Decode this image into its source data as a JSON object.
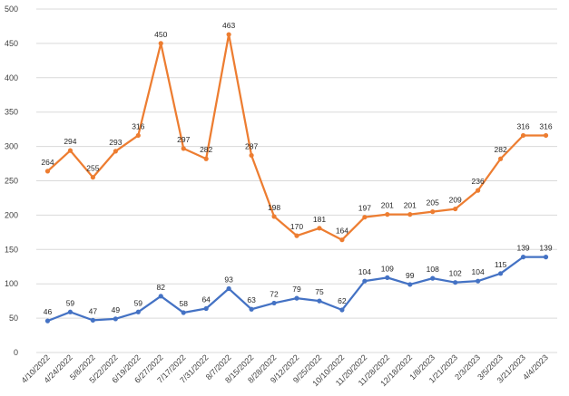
{
  "chart_data": {
    "type": "line",
    "title": "",
    "xlabel": "",
    "ylabel": "",
    "ylim": [
      0,
      500
    ],
    "yticks": [
      0,
      50,
      100,
      150,
      200,
      250,
      300,
      350,
      400,
      450,
      500
    ],
    "grid": true,
    "legend": "none",
    "categories": [
      "4/10/2022",
      "4/24/2022",
      "5/8/2022",
      "5/22/2022",
      "6/19/2022",
      "6/27/2022",
      "7/17/2022",
      "7/31/2022",
      "8/7/2022",
      "8/15/2022",
      "8/28/2022",
      "9/12/2022",
      "9/25/2022",
      "10/10/2022",
      "11/20/2022",
      "11/28/2022",
      "12/18/2022",
      "1/8/2023",
      "1/21/2023",
      "2/3/2023",
      "3/5/2023",
      "3/21/2023",
      "4/4/2023"
    ],
    "series": [
      {
        "color": "#ED7D31",
        "values": [
          264,
          294,
          255,
          293,
          316,
          450,
          297,
          282,
          463,
          287,
          198,
          170,
          181,
          164,
          197,
          201,
          201,
          205,
          209,
          236,
          282,
          316,
          316
        ]
      },
      {
        "color": "#4472C4",
        "values": [
          46,
          59,
          47,
          49,
          59,
          82,
          58,
          64,
          93,
          63,
          72,
          79,
          75,
          62,
          104,
          109,
          99,
          108,
          102,
          104,
          115,
          139,
          139
        ]
      }
    ]
  }
}
